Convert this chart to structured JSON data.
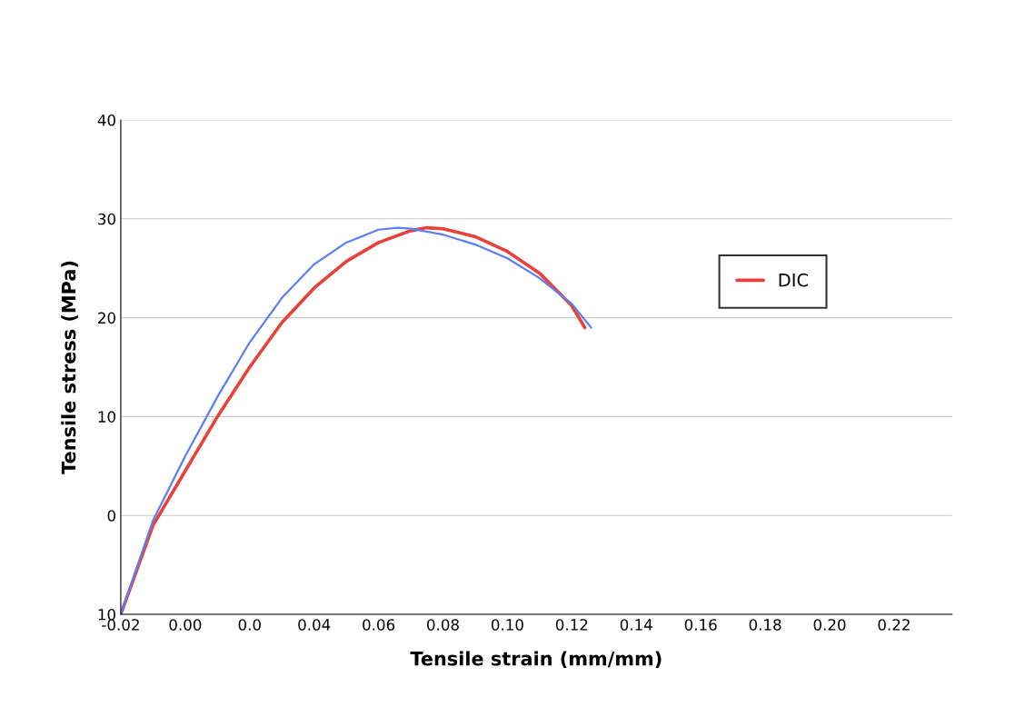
{
  "chart_data": {
    "type": "line",
    "xlabel": "Tensile strain (mm/mm)",
    "ylabel": "Tensile stress (MPa)",
    "xlim": [
      -0.02,
      0.238
    ],
    "ylim": [
      -10,
      40
    ],
    "xticks": [
      {
        "value": -0.02,
        "label": "-0.02"
      },
      {
        "value": 0.0,
        "label": "0.00"
      },
      {
        "value": 0.02,
        "label": "0.0"
      },
      {
        "value": 0.04,
        "label": "0.04"
      },
      {
        "value": 0.06,
        "label": "0.06"
      },
      {
        "value": 0.08,
        "label": "0.08"
      },
      {
        "value": 0.1,
        "label": "0.10"
      },
      {
        "value": 0.12,
        "label": "0.12"
      },
      {
        "value": 0.14,
        "label": "0.14"
      },
      {
        "value": 0.16,
        "label": "0.16"
      },
      {
        "value": 0.18,
        "label": "0.18"
      },
      {
        "value": 0.2,
        "label": "0.20"
      },
      {
        "value": 0.22,
        "label": "0.22"
      }
    ],
    "yticks": [
      {
        "value": -10,
        "label": "10"
      },
      0,
      10,
      20,
      30,
      40
    ],
    "grid": "y",
    "legend": "top right",
    "marker": "none",
    "line_style": "solid",
    "series": [
      {
        "name": "DIC",
        "color": "#e8413c",
        "x": [
          -0.02,
          -0.01,
          0.0,
          0.01,
          0.02,
          0.03,
          0.04,
          0.05,
          0.06,
          0.07,
          0.075,
          0.08,
          0.09,
          0.1,
          0.11,
          0.12,
          0.124
        ],
        "values": [
          -10,
          -1,
          4.5,
          10,
          15,
          19.5,
          23,
          25.7,
          27.6,
          28.8,
          29.1,
          29,
          28.2,
          26.7,
          24.5,
          21.2,
          19.0
        ]
      },
      {
        "color": "#5b7ef5",
        "x": [
          -0.02,
          -0.01,
          0.0,
          0.01,
          0.02,
          0.03,
          0.04,
          0.05,
          0.06,
          0.066,
          0.07,
          0.08,
          0.09,
          0.1,
          0.11,
          0.12,
          0.126
        ],
        "values": [
          -10,
          -0.5,
          6,
          12,
          17.5,
          22,
          25.4,
          27.6,
          28.9,
          29.1,
          29.0,
          28.4,
          27.4,
          26,
          24,
          21.4,
          19.0
        ]
      }
    ]
  }
}
